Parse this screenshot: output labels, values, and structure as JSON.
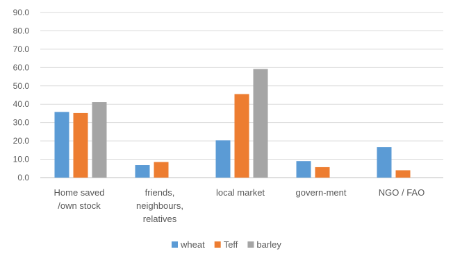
{
  "chart_data": {
    "type": "bar",
    "categories": [
      [
        "Home saved",
        "/own stock"
      ],
      [
        "friends,",
        "neighbours,",
        "relatives"
      ],
      [
        "local market"
      ],
      [
        "govern-ment"
      ],
      [
        "NGO / FAO"
      ]
    ],
    "series": [
      {
        "name": "wheat",
        "color": "#5B9BD5",
        "values": [
          35.8,
          6.8,
          20.3,
          9.0,
          16.6
        ]
      },
      {
        "name": "Teff",
        "color": "#ED7D31",
        "values": [
          35.2,
          8.5,
          45.5,
          5.7,
          4.0
        ]
      },
      {
        "name": "barley",
        "color": "#A5A5A5",
        "values": [
          41.2,
          null,
          59.2,
          null,
          null
        ]
      }
    ],
    "ylim": [
      0,
      90
    ],
    "ytick_step": 10,
    "ytick_format": "one-decimal",
    "grid": "horizontal",
    "legend_position": "bottom-center",
    "title": "",
    "xlabel": "",
    "ylabel": ""
  }
}
